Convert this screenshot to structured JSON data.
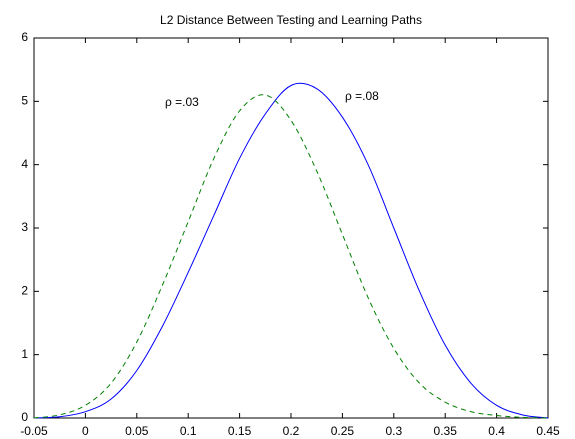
{
  "chart_data": {
    "type": "line",
    "title": "L2 Distance Between Testing and Learning Paths",
    "x": [
      -0.05,
      -0.025,
      0,
      0.025,
      0.05,
      0.075,
      0.1,
      0.125,
      0.15,
      0.175,
      0.2,
      0.225,
      0.25,
      0.275,
      0.3,
      0.325,
      0.35,
      0.375,
      0.4,
      0.425,
      0.45
    ],
    "series": [
      {
        "color": "#0000ff",
        "style": "solid",
        "values": [
          0,
          0.02,
          0.1,
          0.3,
          0.75,
          1.45,
          2.3,
          3.2,
          4.1,
          4.8,
          5.25,
          5.2,
          4.75,
          4.0,
          3.0,
          2.0,
          1.15,
          0.55,
          0.2,
          0.05,
          0
        ]
      },
      {
        "color": "#008000",
        "style": "dashed",
        "values": [
          0,
          0.05,
          0.2,
          0.55,
          1.2,
          2.1,
          3.1,
          4.1,
          4.85,
          5.1,
          4.7,
          3.9,
          2.9,
          1.9,
          1.1,
          0.55,
          0.25,
          0.1,
          0.04,
          0.01,
          0
        ]
      }
    ],
    "annotations": [
      "ρ =.03",
      "ρ =.08"
    ],
    "xlim": [
      -0.05,
      0.45
    ],
    "xticks": [
      -0.05,
      0,
      0.05,
      0.1,
      0.15,
      0.2,
      0.25,
      0.3,
      0.35,
      0.4,
      0.45
    ],
    "ylim": [
      0,
      6
    ],
    "yticks": [
      0,
      1,
      2,
      3,
      4,
      5,
      6
    ],
    "grid": false
  }
}
